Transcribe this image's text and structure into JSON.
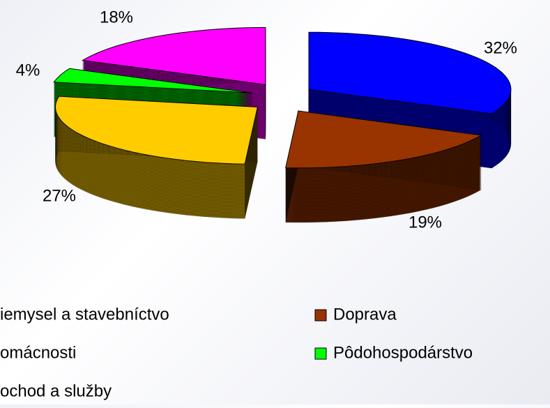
{
  "chart_data": {
    "type": "pie3d",
    "categories": [
      "iemysel a stavebníctvo",
      "Doprava",
      "omácnosti",
      "Pôdohospodárstvo",
      "ochod a služby"
    ],
    "values": [
      32,
      19,
      27,
      4,
      18
    ],
    "value_labels": [
      "32%",
      "19%",
      "27%",
      "4%",
      "18%"
    ],
    "colors": [
      "#0000ff",
      "#993300",
      "#ffcc00",
      "#00ff00",
      "#ff00ff"
    ],
    "legend": "bottom"
  }
}
